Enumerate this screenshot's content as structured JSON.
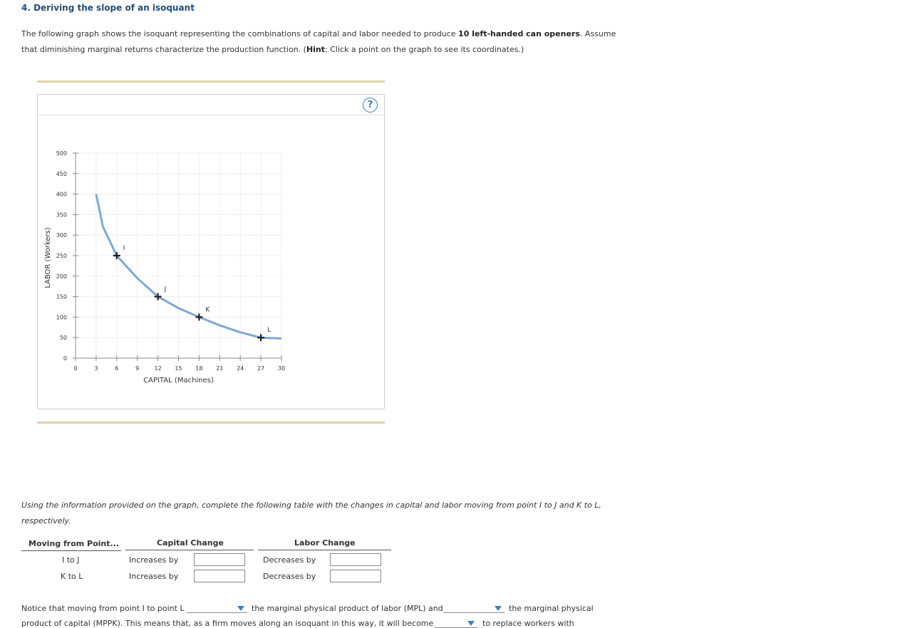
{
  "header": {
    "title": "4. Deriving the slope of an isoquant"
  },
  "intro": {
    "parts": [
      "The following graph shows the isoquant representing the combinations of capital and labor needed to produce ",
      "10 left-handed can openers",
      ". Assume",
      "that diminishing marginal returns characterize the production function. (",
      "Hint",
      ": Click a point on the graph to see its coordinates.)"
    ]
  },
  "help": "?",
  "chart_data": {
    "type": "line",
    "xlabel": "CAPITAL (Machines)",
    "ylabel": "LABOR (Workers)",
    "x": [
      3,
      4,
      6,
      9,
      12,
      15,
      18,
      21,
      24,
      27,
      30
    ],
    "values": [
      400,
      320,
      250,
      195,
      150,
      122,
      100,
      80,
      63,
      50,
      48
    ],
    "color": "#7ea8d3",
    "points": [
      {
        "label": "I",
        "x": 6,
        "y": 250
      },
      {
        "label": "J",
        "x": 12,
        "y": 150
      },
      {
        "label": "K",
        "x": 18,
        "y": 100
      },
      {
        "label": "L",
        "x": 27,
        "y": 50
      }
    ],
    "xlim": [
      0,
      30
    ],
    "xticks": [
      0,
      3,
      6,
      9,
      12,
      15,
      18,
      21,
      24,
      27,
      30
    ],
    "ylim": [
      0,
      500
    ],
    "yticks": [
      0,
      50,
      100,
      150,
      200,
      250,
      300,
      350,
      400,
      450,
      500
    ],
    "grid": true
  },
  "prompt": {
    "lines": [
      "Using the information provided on the graph, complete the following table with the changes in capital and labor moving from point I to J and K to L,",
      "respectively."
    ]
  },
  "table": {
    "header": [
      "Moving from Point...",
      "Capital Change",
      "Labor Change"
    ],
    "rows": [
      [
        "I to J",
        "Increases by",
        "Decreases by"
      ],
      [
        "K to L",
        "Increases by",
        "Decreases by"
      ]
    ]
  },
  "notice": {
    "parts": [
      "Notice that moving from point I to point L",
      "the marginal physical product of labor (MPL) and",
      "the marginal physical",
      "product of capital (MPPK). This means that, as a firm moves along an isoquant in this way, it will become",
      "to replace workers with"
    ]
  }
}
